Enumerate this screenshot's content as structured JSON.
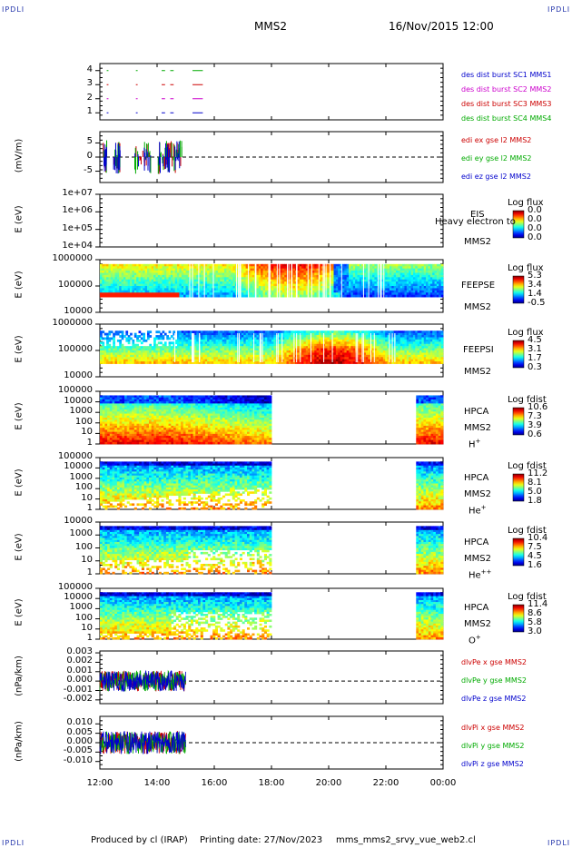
{
  "corners": {
    "tl": "IPDLI",
    "tr": "IPDLI",
    "bl": "IPDLI",
    "br": "IPDLI"
  },
  "header": {
    "spacecraft": "MMS2",
    "datetime": "16/Nov/2015 12:00"
  },
  "footer": {
    "produced_by": "Produced by cl (IRAP)",
    "printing_date": "Printing date: 27/Nov/2023",
    "filename": "mms_mms2_srvy_vue_web2.cl"
  },
  "x_axis": {
    "ticks": [
      "12:00",
      "14:00",
      "16:00",
      "18:00",
      "20:00",
      "22:00",
      "00:00"
    ]
  },
  "colors": {
    "bg": "#ffffff",
    "axis": "#000000",
    "mms1": "#0000cc",
    "mms2": "#cc0000",
    "mms3": "#cc00cc",
    "mms4": "#00aa00"
  },
  "chart_data": [
    {
      "type": "line",
      "id": "burst",
      "y_ticks": [
        "4",
        "3",
        "2",
        "1"
      ],
      "ylim": [
        0.5,
        4.5
      ],
      "legend": [
        "des dist burst SC1 MMS1",
        "des dist burst SC2 MMS2",
        "des dist burst SC3 MMS3",
        "des dist burst SC4 MMS4"
      ]
    },
    {
      "type": "line",
      "id": "edi",
      "ylabel": "(mV/m)",
      "y_ticks": [
        "5",
        "0",
        "-5"
      ],
      "ylim": [
        -9,
        9
      ],
      "legend": [
        "edi ex gse l2 MMS2",
        "edi ey gse l2 MMS2",
        "edi ez gse l2 MMS2"
      ]
    },
    {
      "type": "heatmap",
      "id": "eis",
      "ylabel": "E (eV)",
      "y_ticks": [
        "1e+07",
        "1e+06",
        "1e+05",
        "1e+04"
      ],
      "name": "EIS",
      "name2": "MMS2",
      "extra": "Heavy electron to",
      "cb_title": "Log flux",
      "cb_values": [
        "0.0",
        "0.0",
        "0.0",
        "0.0"
      ]
    },
    {
      "type": "heatmap",
      "id": "feepse",
      "ylabel": "E (eV)",
      "y_ticks": [
        "1000000",
        "100000",
        "10000"
      ],
      "name": "FEEPSE",
      "name2": "MMS2",
      "cb_title": "Log flux",
      "cb_values": [
        "5.3",
        "3.4",
        "1.4",
        "-0.5"
      ]
    },
    {
      "type": "heatmap",
      "id": "feepsi",
      "ylabel": "E (eV)",
      "y_ticks": [
        "1000000",
        "100000",
        "10000"
      ],
      "name": "FEEPSI",
      "name2": "MMS2",
      "cb_title": "Log flux",
      "cb_values": [
        "4.5",
        "3.1",
        "1.7",
        "0.3"
      ]
    },
    {
      "type": "heatmap",
      "id": "hpca_h",
      "ylabel": "E (eV)",
      "y_ticks": [
        "100000",
        "10000",
        "1000",
        "100",
        "10",
        "1"
      ],
      "name": "HPCA",
      "name2": "MMS2",
      "species": "H",
      "charge": "+",
      "cb_title": "Log fdist",
      "cb_values": [
        "10.6",
        "7.3",
        "3.9",
        "0.6"
      ]
    },
    {
      "type": "heatmap",
      "id": "hpca_he",
      "ylabel": "E (eV)",
      "y_ticks": [
        "100000",
        "10000",
        "1000",
        "100",
        "10",
        "1"
      ],
      "name": "HPCA",
      "name2": "MMS2",
      "species": "He",
      "charge": "+",
      "cb_title": "Log fdist",
      "cb_values": [
        "11.2",
        "8.1",
        "5.0",
        "1.8"
      ]
    },
    {
      "type": "heatmap",
      "id": "hpca_hepp",
      "ylabel": "E (eV)",
      "y_ticks": [
        "10000",
        "1000",
        "100",
        "10",
        "1"
      ],
      "name": "HPCA",
      "name2": "MMS2",
      "species": "He",
      "charge": "++",
      "cb_title": "Log fdist",
      "cb_values": [
        "10.4",
        "7.5",
        "4.5",
        "1.6"
      ]
    },
    {
      "type": "heatmap",
      "id": "hpca_o",
      "ylabel": "E (eV)",
      "y_ticks": [
        "100000",
        "10000",
        "1000",
        "100",
        "10",
        "1"
      ],
      "name": "HPCA",
      "name2": "MMS2",
      "species": "O",
      "charge": "+",
      "cb_title": "Log fdist",
      "cb_values": [
        "11.4",
        "8.6",
        "5.8",
        "3.0"
      ]
    },
    {
      "type": "line",
      "id": "dpe",
      "ylabel": "(nPa/km)",
      "y_ticks": [
        "0.003",
        "0.002",
        "0.001",
        "0.000",
        "-0.001",
        "-0.002"
      ],
      "ylim": [
        -0.0024,
        0.0032
      ],
      "legend": [
        "dlvPe x gse MMS2",
        "dlvPe y gse MMS2",
        "dlvPe z gse MMS2"
      ]
    },
    {
      "type": "line",
      "id": "dpi",
      "ylabel": "(nPa/km)",
      "y_ticks": [
        "0.010",
        "0.005",
        "0.000",
        "-0.005",
        "-0.010"
      ],
      "ylim": [
        -0.014,
        0.014
      ],
      "legend": [
        "dlvPi x gse MMS2",
        "dlvPi y gse MMS2",
        "dlvPi z gse MMS2"
      ]
    }
  ]
}
